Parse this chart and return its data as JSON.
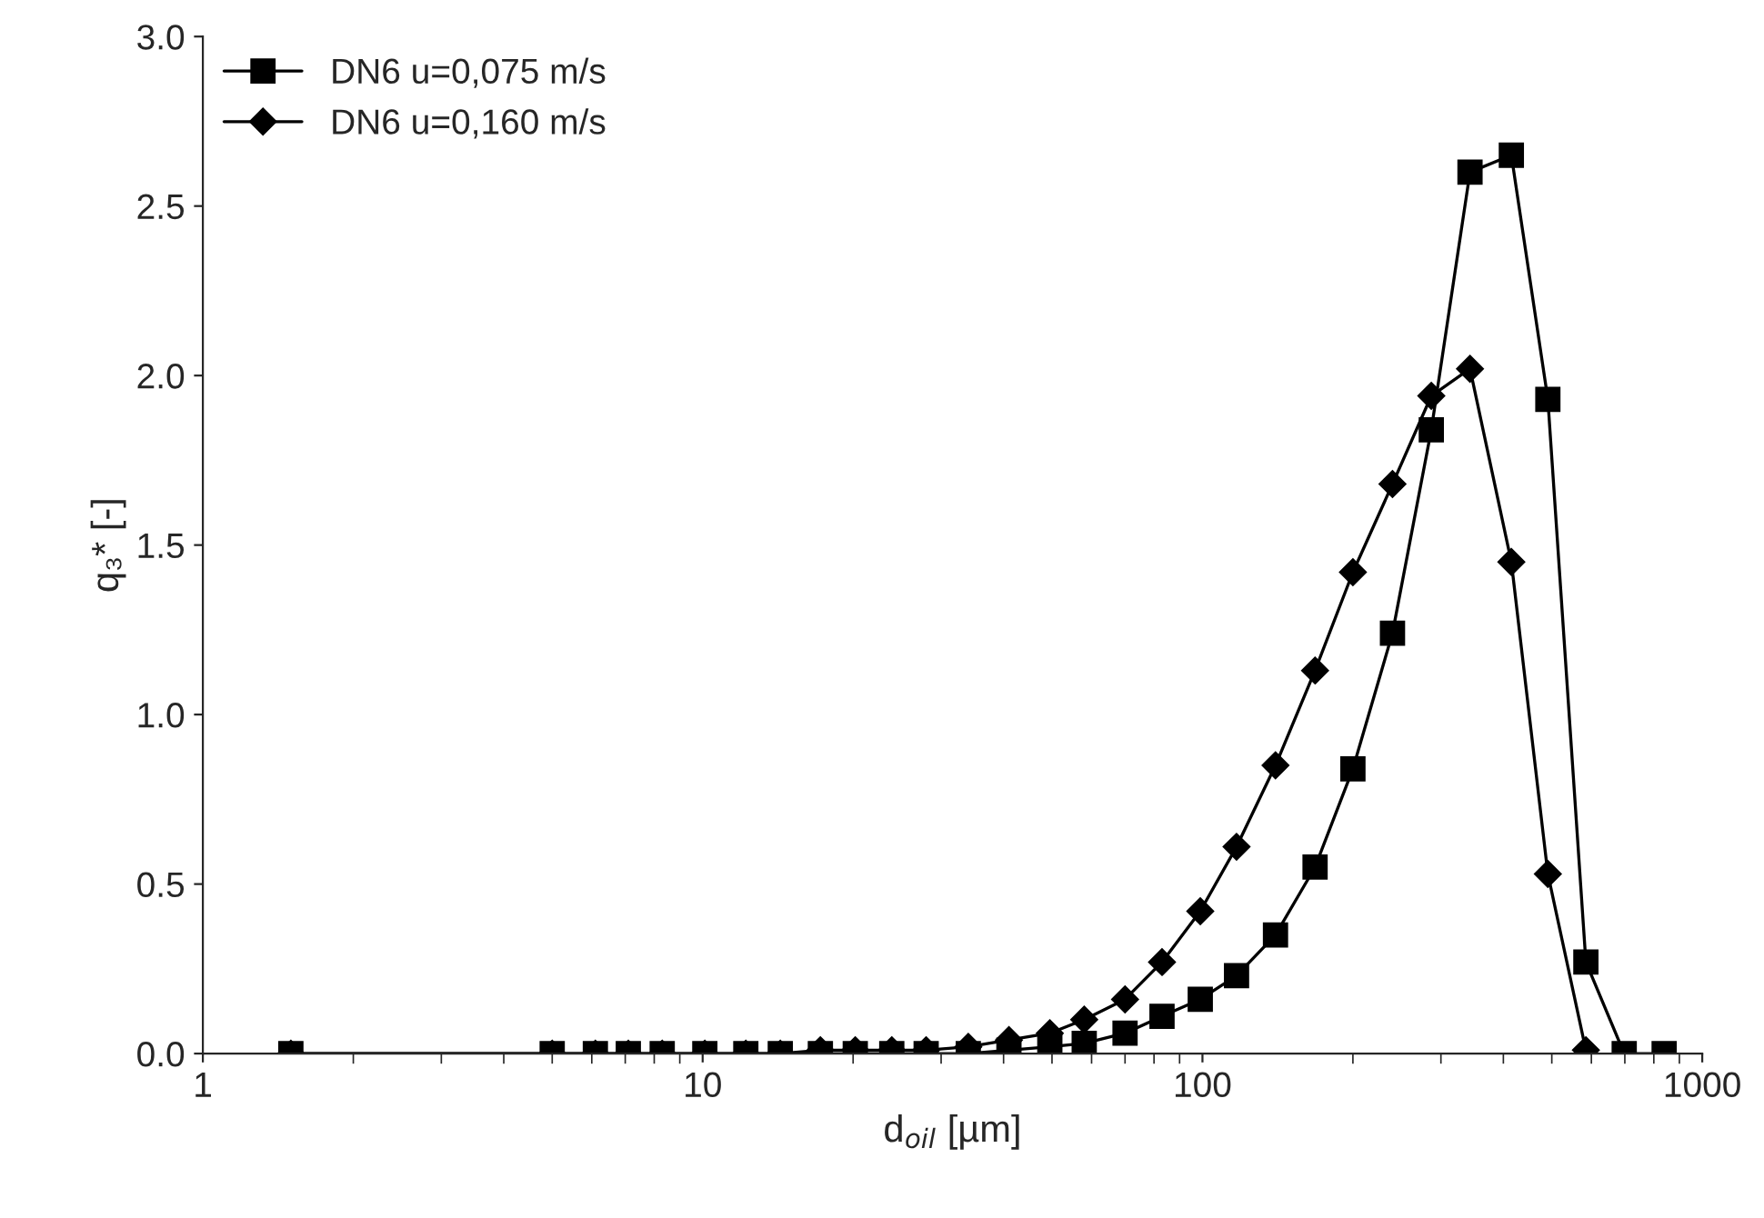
{
  "chart_data": {
    "type": "line",
    "xlabel": "d$_{oil}$ [µm]",
    "ylabel": "q₃* [-]",
    "log": "x",
    "xlim": [
      1,
      1000
    ],
    "xticks": [
      1,
      10,
      100,
      1000
    ],
    "ylim": [
      0,
      3.0
    ],
    "yticks": [
      {
        "value": 0,
        "label": "0.0"
      },
      {
        "value": 0.5,
        "label": "0.5"
      },
      {
        "value": 1.0,
        "label": "1.0"
      },
      {
        "value": 1.5,
        "label": "1.5"
      },
      {
        "value": 2.0,
        "label": "2.0"
      },
      {
        "value": 2.5,
        "label": "2.5"
      },
      {
        "value": 3.0,
        "label": "3.0"
      }
    ],
    "grid": false,
    "legend": "top left",
    "line_style": "solid",
    "series": [
      {
        "name": "DN6 u=0,075 m/s",
        "color": "#000000",
        "marker": "square",
        "x": [
          1.5,
          5.0,
          6.1,
          7.1,
          8.3,
          10.1,
          12.2,
          14.3,
          17.2,
          20.2,
          23.9,
          28,
          34,
          41,
          49.5,
          58,
          70,
          83,
          99,
          117,
          140,
          168,
          200,
          240,
          287,
          343,
          415,
          491,
          585,
          698,
          839
        ],
        "values": [
          0,
          0,
          0,
          0,
          0,
          0,
          0,
          0,
          0,
          0,
          0,
          0,
          0,
          0.01,
          0.02,
          0.03,
          0.06,
          0.11,
          0.16,
          0.23,
          0.35,
          0.55,
          0.84,
          1.24,
          1.84,
          2.6,
          2.65,
          1.93,
          0.27,
          0,
          0
        ]
      },
      {
        "name": "DN6 u=0,160 m/s",
        "color": "#000000",
        "marker": "diamond",
        "x": [
          1.5,
          5.0,
          6.1,
          7.1,
          8.3,
          10.1,
          12.2,
          14.3,
          17.2,
          20.2,
          23.9,
          28,
          34,
          41,
          49.5,
          58,
          70,
          83,
          99,
          117,
          140,
          168,
          200,
          240,
          287,
          343,
          415,
          491,
          585
        ],
        "values": [
          0,
          0,
          0,
          0,
          0,
          0,
          0,
          0,
          0.01,
          0.01,
          0.01,
          0.01,
          0.02,
          0.04,
          0.06,
          0.1,
          0.16,
          0.27,
          0.42,
          0.61,
          0.85,
          1.13,
          1.42,
          1.68,
          1.94,
          2.02,
          1.45,
          0.53,
          0.01
        ]
      }
    ]
  }
}
